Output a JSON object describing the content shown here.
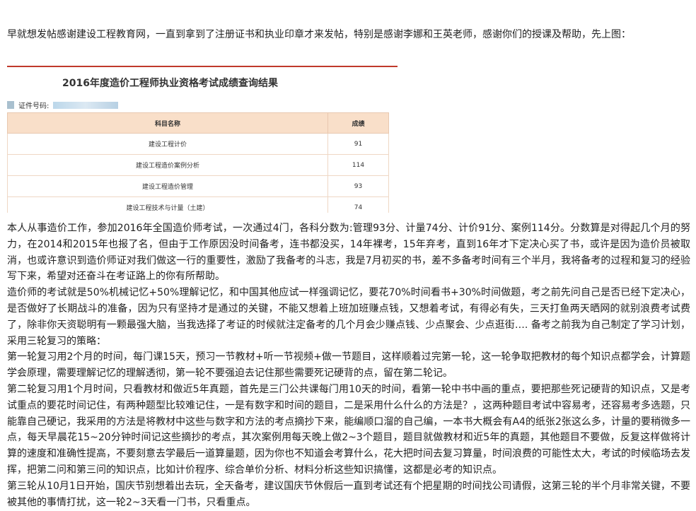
{
  "intro": "早就想发帖感谢建设工程教育网，一直到拿到了注册证书和执业印章才来发帖，特别是感谢李娜和王英老师，感谢你们的授课及帮助，先上图：",
  "score_image": {
    "title": "2016年度造价工程师执业资格考试成绩查询结果",
    "id_label": "证件号码:",
    "table": {
      "header": [
        "科目名称",
        "成绩"
      ],
      "rows": [
        [
          "建设工程计价",
          91
        ],
        [
          "建设工程造价案例分析",
          114
        ],
        [
          "建设工程造价管理",
          93
        ],
        [
          "建设工程技术与计量（土建）",
          74
        ]
      ]
    }
  },
  "paragraphs": [
    "本人从事造价工作，参加2016年全国造价师考试，一次通过4门，各科分数为:管理93分、计量74分、计价91分、案例114分。分数算是对得起几个月的努力，在2014和2015年也报了名，但由于工作原因没时间备考，连书都没买，14年裸考，15年弃考，直到16年才下定决心买了书，或许是因为造价员被取消，也或许意识到造价师证对我们做这一行的重要性，激励了我备考的斗志，我是7月初买的书，差不多备考时间有三个半月，我将备考的过程和复习的经验写下来，希望对还奋斗在考证路上的你有所帮助。",
    "造价师的考试就是50%机械记忆+50%理解记忆，和中国其他应试一样强调记忆，要花70%时间看书+30%时间做题，考之前先问自己是否已经下定决心，是否做好了长期战斗的准备，因为只有坚持才是通过的关键，不能又想着上班加班赚点钱，又想着考试，有得必有失，三天打鱼两天晒网的就别浪费考试费了，除非你天资聪明有一颗最强大脑，当我选择了考证的时候就注定备考的几个月会少赚点钱、少点聚会、少点逛街….    备考之前我为自己制定了学习计划，采用三轮复习的策略：",
    "第一轮复习用2个月的时间，每门课15天，预习一节教材+听一节视频+做一节题目，这样顺着过完第一轮，这一轮争取把教材的每个知识点都学会，计算题学会原理，需要理解记忆的理解透彻，第一轮不要强迫去记住那些需要死记硬背的点，留在第二轮记。",
    "第二轮复习用1个月时间，只看教材和做近5年真题，首先是三门公共课每门用10天的时间，看第一轮中书中画的重点，要把那些死记硬背的知识点，又是考试重点的要花时间记住，有两种题型比较难记住，一是有数字和时间的题目，二是采用什么什么的方法是？，这两种题目考试中容易考，还容易考多选题，只能靠自己硬记，我采用的方法是将教材中这些与数字和方法的考点摘抄下来，能编顺口溜的自己编，一本书大概会有A4的纸张2张这么多，计量的要稍微多一点，每天早晨花15~20分钟时间记这些摘抄的考点，其次案例用每天晚上做2~3个题目，题目就做教材和近5年的真题，其他题目不要做，反复这样做将计算的速度和准确性提高，不要刻意去学最后一道算量题，因为你也不知道会考算什么，花大把时间去复习算量，时间浪费的可能性太大，考试的时候临场去发挥，把第二问和第三问的知识点，比如计价程序、综合单价分析、材料分析这些知识搞懂，这都是必考的知识点。",
    "第三轮从10月1日开始，国庆节别想着出去玩，全天备考，建议国庆节休假后一直到考试还有个把星期的时间找公司请假，这第三轮的半个月非常关键，不要被其他的事情打扰，这一轮2~3天看一门书，只看重点。"
  ]
}
